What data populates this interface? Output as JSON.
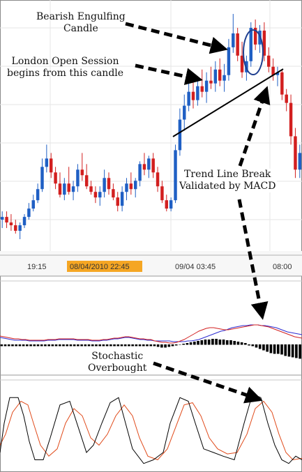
{
  "chart_data": {
    "type": "candlestick",
    "panels": [
      "price",
      "macd",
      "stochastic"
    ],
    "time_axis": {
      "labels": [
        "19:15",
        "08/04/2010 22:45",
        "09/04 03:45",
        "08:00"
      ],
      "highlighted_label": "08/04/2010 22:45",
      "highlight_color": "#f5a623"
    },
    "candles": [
      {
        "o": 5,
        "h": 8,
        "l": 2,
        "c": 6
      },
      {
        "o": 6,
        "h": 8,
        "l": 2,
        "c": 4
      },
      {
        "o": 4,
        "h": 7,
        "l": 1,
        "c": 3
      },
      {
        "o": 3,
        "h": 5,
        "l": 0,
        "c": 1
      },
      {
        "o": 1,
        "h": 4,
        "l": -2,
        "c": 3
      },
      {
        "o": 3,
        "h": 7,
        "l": 2,
        "c": 6
      },
      {
        "o": 6,
        "h": 11,
        "l": 5,
        "c": 9
      },
      {
        "o": 9,
        "h": 14,
        "l": 8,
        "c": 12
      },
      {
        "o": 12,
        "h": 18,
        "l": 11,
        "c": 16
      },
      {
        "o": 16,
        "h": 27,
        "l": 15,
        "c": 24
      },
      {
        "o": 24,
        "h": 32,
        "l": 22,
        "c": 27
      },
      {
        "o": 27,
        "h": 29,
        "l": 20,
        "c": 22
      },
      {
        "o": 22,
        "h": 24,
        "l": 16,
        "c": 18
      },
      {
        "o": 18,
        "h": 22,
        "l": 13,
        "c": 14
      },
      {
        "o": 14,
        "h": 20,
        "l": 12,
        "c": 18
      },
      {
        "o": 18,
        "h": 24,
        "l": 14,
        "c": 15
      },
      {
        "o": 15,
        "h": 19,
        "l": 12,
        "c": 17
      },
      {
        "o": 17,
        "h": 25,
        "l": 15,
        "c": 23
      },
      {
        "o": 23,
        "h": 29,
        "l": 19,
        "c": 21
      },
      {
        "o": 21,
        "h": 25,
        "l": 16,
        "c": 17
      },
      {
        "o": 17,
        "h": 19,
        "l": 14,
        "c": 15
      },
      {
        "o": 15,
        "h": 17,
        "l": 11,
        "c": 13
      },
      {
        "o": 13,
        "h": 17,
        "l": 10,
        "c": 15
      },
      {
        "o": 15,
        "h": 23,
        "l": 13,
        "c": 20
      },
      {
        "o": 20,
        "h": 22,
        "l": 14,
        "c": 16
      },
      {
        "o": 16,
        "h": 18,
        "l": 12,
        "c": 13
      },
      {
        "o": 13,
        "h": 15,
        "l": 8,
        "c": 10
      },
      {
        "o": 10,
        "h": 17,
        "l": 8,
        "c": 15
      },
      {
        "o": 15,
        "h": 20,
        "l": 12,
        "c": 18
      },
      {
        "o": 18,
        "h": 22,
        "l": 14,
        "c": 16
      },
      {
        "o": 16,
        "h": 20,
        "l": 13,
        "c": 19
      },
      {
        "o": 19,
        "h": 26,
        "l": 17,
        "c": 25
      },
      {
        "o": 25,
        "h": 29,
        "l": 21,
        "c": 23
      },
      {
        "o": 23,
        "h": 28,
        "l": 20,
        "c": 27
      },
      {
        "o": 27,
        "h": 29,
        "l": 20,
        "c": 22
      },
      {
        "o": 22,
        "h": 24,
        "l": 15,
        "c": 17
      },
      {
        "o": 17,
        "h": 19,
        "l": 11,
        "c": 12
      },
      {
        "o": 12,
        "h": 14,
        "l": 8,
        "c": 9
      },
      {
        "o": 9,
        "h": 13,
        "l": 8,
        "c": 12
      },
      {
        "o": 12,
        "h": 32,
        "l": 11,
        "c": 30
      },
      {
        "o": 30,
        "h": 45,
        "l": 28,
        "c": 41
      },
      {
        "o": 41,
        "h": 50,
        "l": 37,
        "c": 46
      },
      {
        "o": 46,
        "h": 54,
        "l": 44,
        "c": 51
      },
      {
        "o": 51,
        "h": 55,
        "l": 45,
        "c": 48
      },
      {
        "o": 48,
        "h": 56,
        "l": 46,
        "c": 53
      },
      {
        "o": 53,
        "h": 59,
        "l": 49,
        "c": 51
      },
      {
        "o": 51,
        "h": 58,
        "l": 47,
        "c": 55
      },
      {
        "o": 55,
        "h": 60,
        "l": 52,
        "c": 54
      },
      {
        "o": 54,
        "h": 62,
        "l": 51,
        "c": 59
      },
      {
        "o": 59,
        "h": 63,
        "l": 53,
        "c": 55
      },
      {
        "o": 55,
        "h": 61,
        "l": 51,
        "c": 57
      },
      {
        "o": 57,
        "h": 70,
        "l": 55,
        "c": 67
      },
      {
        "o": 67,
        "h": 79,
        "l": 65,
        "c": 72
      },
      {
        "o": 72,
        "h": 74,
        "l": 62,
        "c": 64
      },
      {
        "o": 64,
        "h": 69,
        "l": 56,
        "c": 58
      },
      {
        "o": 58,
        "h": 64,
        "l": 55,
        "c": 62
      },
      {
        "o": 62,
        "h": 76,
        "l": 60,
        "c": 74
      },
      {
        "o": 74,
        "h": 77,
        "l": 66,
        "c": 68
      },
      {
        "o": 68,
        "h": 75,
        "l": 65,
        "c": 73
      },
      {
        "o": 73,
        "h": 76,
        "l": 62,
        "c": 64
      },
      {
        "o": 64,
        "h": 67,
        "l": 58,
        "c": 60
      },
      {
        "o": 60,
        "h": 63,
        "l": 55,
        "c": 57
      },
      {
        "o": 57,
        "h": 60,
        "l": 53,
        "c": 58
      },
      {
        "o": 58,
        "h": 59,
        "l": 48,
        "c": 50
      },
      {
        "o": 50,
        "h": 52,
        "l": 44,
        "c": 47
      },
      {
        "o": 47,
        "h": 50,
        "l": 32,
        "c": 35
      },
      {
        "o": 35,
        "h": 38,
        "l": 20,
        "c": 23
      },
      {
        "o": 23,
        "h": 32,
        "l": 20,
        "c": 29
      }
    ],
    "price_range": [
      -5,
      82
    ],
    "up_color": "#1f5fc4",
    "down_color": "#d21f1f",
    "annotations": [
      {
        "line1": "Bearish Engulfing",
        "line2": "Candle"
      },
      {
        "line1": "London Open Session",
        "line2": "begins from this candle"
      },
      {
        "line1": "Trend Line Break",
        "line2": "Validated by MACD"
      },
      {
        "line1": "Stochastic",
        "line2": "Overbought"
      }
    ],
    "macd": {
      "histogram": [
        -2,
        -2,
        -2,
        -2,
        -2,
        -2,
        -2,
        -2,
        -2,
        -2,
        -2,
        -2,
        -2,
        -2,
        -2,
        -2,
        -2,
        -2,
        -2,
        -2,
        -2,
        -2,
        -2,
        -2,
        -2,
        -2,
        -2,
        -2,
        -2,
        -2,
        -2,
        -2,
        -2,
        -2,
        -2,
        -2,
        -2,
        -2,
        -2,
        -2,
        -2,
        -2,
        -2,
        -3,
        -4,
        -4,
        -3,
        -2,
        -1,
        0,
        1,
        2,
        3,
        4,
        5,
        6,
        7,
        7,
        8,
        8,
        7,
        7,
        6,
        6,
        5,
        4,
        3,
        2,
        -1,
        -2,
        -4,
        -6,
        -8,
        -10,
        -12,
        -13,
        -13,
        -14,
        -16,
        -17,
        -18,
        -19,
        -20
      ],
      "line_color": "#2b2bd1",
      "signal_color": "#d21f1f",
      "macd_line": [
        10,
        9,
        8,
        7,
        6,
        6,
        6,
        6,
        5,
        5,
        5,
        5,
        5,
        6,
        6,
        6,
        7,
        7,
        7,
        7,
        7,
        6,
        6,
        6,
        6,
        5,
        5,
        5,
        6,
        6,
        7,
        8,
        8,
        9,
        10,
        10,
        9,
        8,
        7,
        7,
        6,
        6,
        5,
        5,
        5,
        5,
        5,
        4,
        4,
        4,
        4,
        5,
        5,
        6,
        7,
        9,
        11,
        13,
        15,
        17,
        19,
        20,
        22,
        24,
        25,
        26,
        27,
        27,
        28,
        28,
        28,
        27,
        27,
        26,
        25,
        24,
        22,
        20,
        18,
        17,
        16,
        15,
        14
      ],
      "signal_line": [
        12,
        11,
        10,
        9,
        8,
        8,
        7,
        7,
        6,
        6,
        6,
        6,
        6,
        7,
        7,
        7,
        8,
        8,
        8,
        8,
        8,
        7,
        7,
        7,
        7,
        6,
        6,
        6,
        7,
        7,
        8,
        9,
        9,
        10,
        11,
        11,
        10,
        9,
        8,
        8,
        7,
        7,
        5,
        4,
        3,
        3,
        2,
        2,
        3,
        5,
        7,
        10,
        13,
        16,
        19,
        21,
        23,
        24,
        24,
        23,
        22,
        21,
        21,
        22,
        23,
        24,
        25,
        26,
        27,
        28,
        28,
        27,
        26,
        25,
        23,
        21,
        19,
        17,
        15,
        13,
        11,
        10,
        9
      ]
    },
    "stochastic": {
      "k_color": "#000000",
      "d_color": "#e04a1a",
      "k_points": [
        [
          0,
          20
        ],
        [
          6,
          60
        ],
        [
          14,
          95
        ],
        [
          26,
          95
        ],
        [
          34,
          70
        ],
        [
          42,
          35
        ],
        [
          50,
          10
        ],
        [
          62,
          10
        ],
        [
          72,
          40
        ],
        [
          86,
          85
        ],
        [
          100,
          90
        ],
        [
          112,
          55
        ],
        [
          124,
          20
        ],
        [
          134,
          30
        ],
        [
          146,
          60
        ],
        [
          158,
          88
        ],
        [
          170,
          95
        ],
        [
          180,
          60
        ],
        [
          190,
          25
        ],
        [
          206,
          5
        ],
        [
          220,
          10
        ],
        [
          234,
          20
        ],
        [
          244,
          60
        ],
        [
          258,
          95
        ],
        [
          270,
          90
        ],
        [
          280,
          60
        ],
        [
          292,
          25
        ],
        [
          306,
          20
        ],
        [
          320,
          15
        ],
        [
          336,
          10
        ],
        [
          350,
          60
        ],
        [
          362,
          100
        ],
        [
          374,
          95
        ],
        [
          384,
          60
        ],
        [
          394,
          30
        ],
        [
          404,
          10
        ],
        [
          414,
          5
        ],
        [
          424,
          15
        ],
        [
          433,
          10
        ]
      ],
      "d_points": [
        [
          0,
          30
        ],
        [
          8,
          45
        ],
        [
          18,
          75
        ],
        [
          30,
          90
        ],
        [
          40,
          85
        ],
        [
          48,
          60
        ],
        [
          58,
          30
        ],
        [
          70,
          15
        ],
        [
          82,
          25
        ],
        [
          94,
          60
        ],
        [
          106,
          80
        ],
        [
          118,
          70
        ],
        [
          130,
          40
        ],
        [
          142,
          30
        ],
        [
          154,
          45
        ],
        [
          166,
          70
        ],
        [
          178,
          85
        ],
        [
          190,
          70
        ],
        [
          200,
          40
        ],
        [
          212,
          15
        ],
        [
          226,
          10
        ],
        [
          240,
          25
        ],
        [
          252,
          55
        ],
        [
          264,
          85
        ],
        [
          276,
          88
        ],
        [
          288,
          70
        ],
        [
          300,
          40
        ],
        [
          312,
          25
        ],
        [
          326,
          18
        ],
        [
          340,
          20
        ],
        [
          354,
          45
        ],
        [
          366,
          80
        ],
        [
          378,
          90
        ],
        [
          390,
          75
        ],
        [
          400,
          45
        ],
        [
          410,
          20
        ],
        [
          420,
          10
        ],
        [
          433,
          12
        ]
      ]
    }
  }
}
